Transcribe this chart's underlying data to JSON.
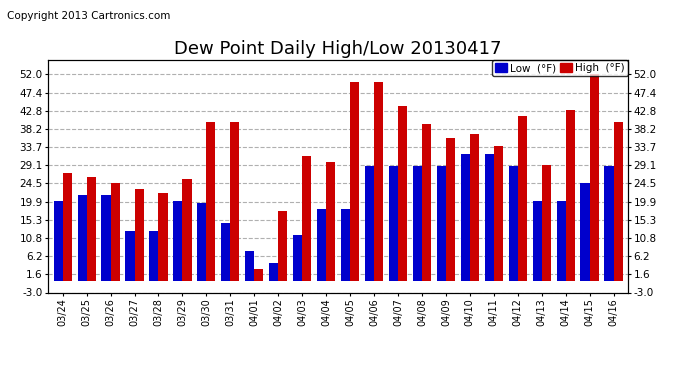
{
  "title": "Dew Point Daily High/Low 20130417",
  "copyright": "Copyright 2013 Cartronics.com",
  "legend_low": "Low  (°F)",
  "legend_high": "High  (°F)",
  "dates": [
    "03/24",
    "03/25",
    "03/26",
    "03/27",
    "03/28",
    "03/29",
    "03/30",
    "03/31",
    "04/01",
    "04/02",
    "04/03",
    "04/04",
    "04/05",
    "04/06",
    "04/07",
    "04/08",
    "04/09",
    "04/10",
    "04/11",
    "04/12",
    "04/13",
    "04/14",
    "04/15",
    "04/16"
  ],
  "high": [
    27.0,
    26.0,
    24.5,
    23.0,
    22.0,
    25.5,
    40.0,
    40.0,
    3.0,
    17.5,
    31.5,
    30.0,
    50.0,
    50.0,
    44.0,
    39.5,
    36.0,
    37.0,
    33.8,
    41.5,
    29.1,
    43.0,
    52.0,
    40.0
  ],
  "low": [
    20.0,
    21.5,
    21.5,
    12.5,
    12.5,
    20.0,
    19.5,
    14.5,
    7.5,
    4.5,
    11.5,
    18.0,
    18.0,
    29.0,
    29.0,
    29.0,
    29.0,
    32.0,
    32.0,
    29.0,
    20.0,
    20.0,
    24.5,
    29.0
  ],
  "ylim": [
    -3.0,
    55.6
  ],
  "yticks": [
    -3.0,
    1.6,
    6.2,
    10.8,
    15.3,
    19.9,
    24.5,
    29.1,
    33.7,
    38.2,
    42.8,
    47.4,
    52.0
  ],
  "bar_width": 0.38,
  "low_color": "#0000cc",
  "high_color": "#cc0000",
  "bg_color": "#ffffff",
  "grid_color": "#b0b0b0",
  "title_fontsize": 13,
  "copyright_fontsize": 7.5
}
